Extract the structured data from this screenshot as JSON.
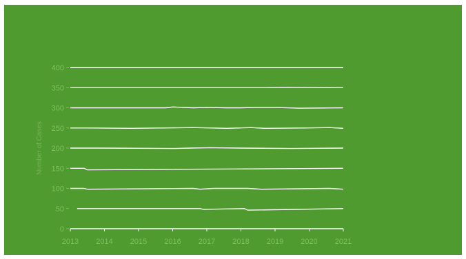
{
  "colors": {
    "background": "#4f9b2f",
    "line": "#ffffff",
    "axis_text": "#7fbf5e",
    "axis_title": "#76b457"
  },
  "chart_data": {
    "type": "line",
    "title": "",
    "xlabel": "",
    "ylabel": "Number of Cases",
    "xlim": [
      2013,
      2021
    ],
    "ylim": [
      0,
      400
    ],
    "x_ticks": [
      "2013",
      "2014",
      "2015",
      "2016",
      "2017",
      "2018",
      "2019",
      "2020",
      "2021"
    ],
    "y_ticks": [
      "0",
      "50",
      "100",
      "150",
      "200",
      "250",
      "300",
      "350",
      "400"
    ],
    "grid": false,
    "legend": "none",
    "series": [
      {
        "x": [
          2013,
          2021
        ],
        "y": [
          0,
          0
        ]
      },
      {
        "x": [
          2013.2,
          2016.8,
          2016.9,
          2018.1,
          2018.2,
          2021
        ],
        "y": [
          50,
          50,
          48,
          50,
          46,
          50
        ]
      },
      {
        "x": [
          2013,
          2013.4,
          2013.5,
          2016.6,
          2016.8,
          2017.2,
          2018.2,
          2018.6,
          2020.6,
          2021
        ],
        "y": [
          100,
          100,
          98,
          100,
          98,
          100,
          100,
          98,
          100,
          98
        ]
      },
      {
        "x": [
          2013,
          2013.4,
          2013.5,
          2021
        ],
        "y": [
          150,
          150,
          146,
          150
        ]
      },
      {
        "x": [
          2013,
          2013.9,
          2016.0,
          2016.5,
          2017.1,
          2018.0,
          2019.5,
          2021
        ],
        "y": [
          200,
          200,
          199,
          200,
          201,
          200,
          199,
          200
        ]
      },
      {
        "x": [
          2013,
          2013.6,
          2014.8,
          2015.6,
          2016.6,
          2017.6,
          2018.3,
          2018.7,
          2019.8,
          2020.6,
          2021
        ],
        "y": [
          250,
          250,
          249,
          250,
          251,
          249,
          251,
          249,
          250,
          251,
          249
        ]
      },
      {
        "x": [
          2013,
          2015.8,
          2016.0,
          2016.6,
          2017.0,
          2017.6,
          2018.0,
          2018.4,
          2019.0,
          2019.7,
          2021
        ],
        "y": [
          300,
          300,
          302,
          300,
          301,
          300,
          300,
          301,
          301,
          299,
          300
        ]
      },
      {
        "x": [
          2013,
          2018.8,
          2019.2,
          2021
        ],
        "y": [
          350,
          350,
          351,
          350
        ]
      },
      {
        "x": [
          2013,
          2021
        ],
        "y": [
          400,
          400
        ]
      }
    ]
  }
}
